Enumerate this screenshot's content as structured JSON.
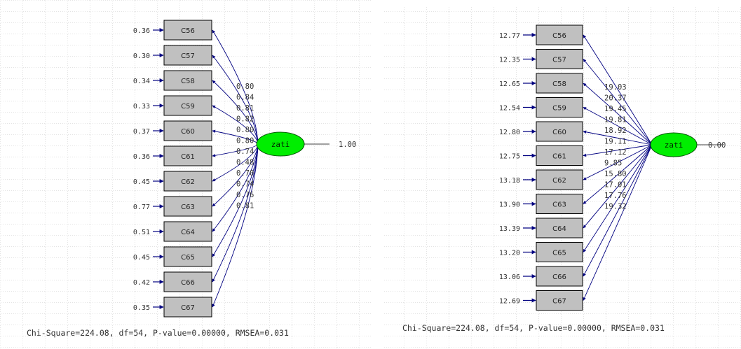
{
  "colors": {
    "box_fill": "#c0c0c0",
    "box_stroke": "#000000",
    "latent_fill": "#00ee00",
    "arrow": "#000080",
    "grid": "#c8c8c8",
    "text": "#333333"
  },
  "panels": [
    {
      "id": "standardized",
      "latent": {
        "label": "zati",
        "value": "1.00"
      },
      "indicators": [
        {
          "label": "C56",
          "error": "0.36",
          "loading": "0.80"
        },
        {
          "label": "C57",
          "error": "0.30",
          "loading": "0.84"
        },
        {
          "label": "C58",
          "error": "0.34",
          "loading": "0.81"
        },
        {
          "label": "C59",
          "error": "0.33",
          "loading": "0.82"
        },
        {
          "label": "C60",
          "error": "0.37",
          "loading": "0.80"
        },
        {
          "label": "C61",
          "error": "0.36",
          "loading": "0.80"
        },
        {
          "label": "C62",
          "error": "0.45",
          "loading": "0.74"
        },
        {
          "label": "C63",
          "error": "0.77",
          "loading": "0.48"
        },
        {
          "label": "C64",
          "error": "0.51",
          "loading": "0.70"
        },
        {
          "label": "C65",
          "error": "0.45",
          "loading": "0.74"
        },
        {
          "label": "C66",
          "error": "0.42",
          "loading": "0.76"
        },
        {
          "label": "C67",
          "error": "0.35",
          "loading": "0.81"
        }
      ],
      "fit_text": "Chi-Square=224.08, df=54, P-value=0.00000, RMSEA=0.031"
    },
    {
      "id": "t_values",
      "latent": {
        "label": "zati",
        "value": "0.00"
      },
      "indicators": [
        {
          "label": "C56",
          "error": "12.77",
          "loading": "19.03"
        },
        {
          "label": "C57",
          "error": "12.35",
          "loading": "20.37"
        },
        {
          "label": "C58",
          "error": "12.65",
          "loading": "19.45"
        },
        {
          "label": "C59",
          "error": "12.54",
          "loading": "19.81"
        },
        {
          "label": "C60",
          "error": "12.80",
          "loading": "18.92"
        },
        {
          "label": "C61",
          "error": "12.75",
          "loading": "19.11"
        },
        {
          "label": "C62",
          "error": "13.18",
          "loading": "17.12"
        },
        {
          "label": "C63",
          "error": "13.90",
          "loading": "9.85"
        },
        {
          "label": "C64",
          "error": "13.39",
          "loading": "15.80"
        },
        {
          "label": "C65",
          "error": "13.20",
          "loading": "17.01"
        },
        {
          "label": "C66",
          "error": "13.06",
          "loading": "17.76"
        },
        {
          "label": "C67",
          "error": "12.69",
          "loading": "19.32"
        }
      ],
      "fit_text": "Chi-Square=224.08, df=54, P-value=0.00000, RMSEA=0.031"
    }
  ]
}
